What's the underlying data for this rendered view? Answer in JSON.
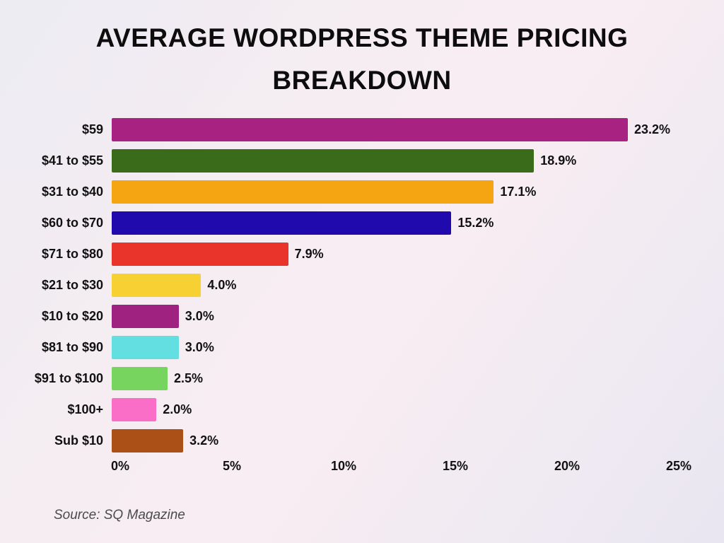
{
  "title": "AVERAGE WORDPRESS THEME PRICING BREAKDOWN",
  "source": "Source: SQ Magazine",
  "chart_data": {
    "type": "bar",
    "orientation": "horizontal",
    "title": "AVERAGE WORDPRESS THEME PRICING BREAKDOWN",
    "categories": [
      "$59",
      "$41 to $55",
      "$31 to $40",
      "$60 to $70",
      "$71 to $80",
      "$21 to $30",
      "$10 to $20",
      "$81 to $90",
      "$91 to $100",
      "$100+",
      "Sub $10"
    ],
    "values": [
      23.2,
      18.9,
      17.1,
      15.2,
      7.9,
      4.0,
      3.0,
      3.0,
      2.5,
      2.0,
      3.2
    ],
    "value_labels": [
      "23.2%",
      "18.9%",
      "17.1%",
      "15.2%",
      "7.9%",
      "4.0%",
      "3.0%",
      "3.0%",
      "2.5%",
      "2.0%",
      "3.2%"
    ],
    "bar_colors": [
      "#a82381",
      "#3a6b1a",
      "#f6a512",
      "#2009ad",
      "#e8342a",
      "#f7d133",
      "#9f2180",
      "#63dfe1",
      "#77d45e",
      "#fa6ec8",
      "#ab5016"
    ],
    "xlabel": "",
    "ylabel": "",
    "x_ticks": [
      "0%",
      "5%",
      "10%",
      "15%",
      "20%",
      "25%"
    ],
    "xlim": [
      0,
      25
    ],
    "grid": false,
    "legend": false,
    "value_label_position": "outside-end",
    "source": "Source: SQ Magazine"
  }
}
